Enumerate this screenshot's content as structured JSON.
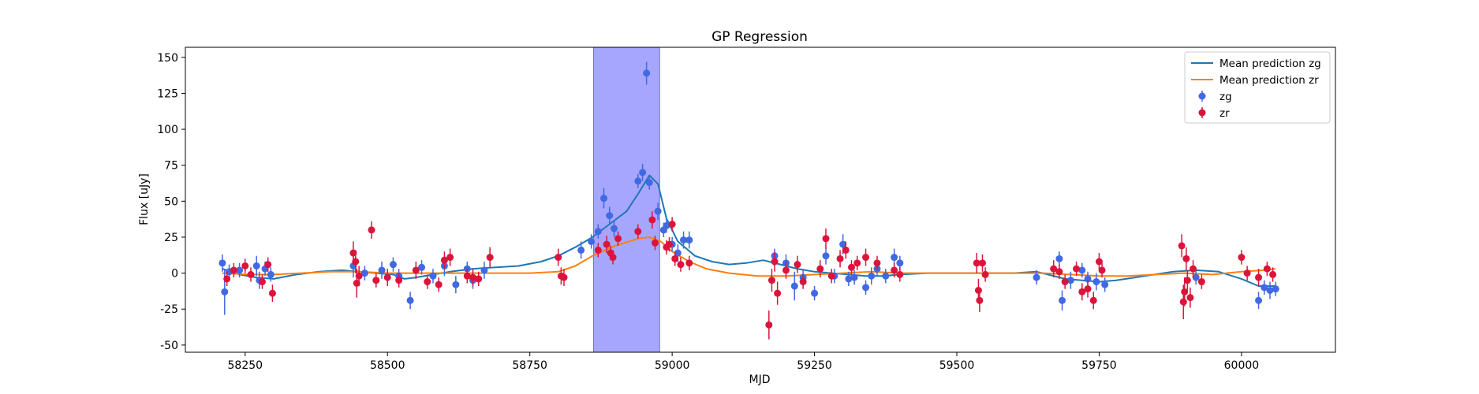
{
  "chart_data": {
    "type": "scatter",
    "title": "GP Regression",
    "xlabel": "MJD",
    "ylabel": "Flux [uJy]",
    "xlim": [
      58145,
      60165
    ],
    "ylim": [
      -55,
      157
    ],
    "x_ticks": [
      58250,
      58500,
      58750,
      59000,
      59250,
      59500,
      59750,
      60000
    ],
    "y_ticks": [
      -50,
      -25,
      0,
      25,
      50,
      75,
      100,
      125,
      150
    ],
    "legend_position": "top-right",
    "highlight_span": {
      "x0": 58862,
      "x1": 58978,
      "color": "#a6a6ff"
    },
    "lines": [
      {
        "name": "Mean prediction zg",
        "color": "#1f77b4",
        "x": [
          58210,
          58240,
          58270,
          58300,
          58340,
          58380,
          58420,
          58450,
          58480,
          58510,
          58530,
          58550,
          58580,
          58610,
          58650,
          58690,
          58730,
          58770,
          58800,
          58830,
          58860,
          58890,
          58920,
          58940,
          58960,
          58975,
          58990,
          59010,
          59040,
          59070,
          59100,
          59130,
          59160,
          59190,
          59220,
          59250,
          59280,
          59310,
          59340,
          59370,
          59400,
          59450,
          59500,
          59550,
          59600,
          59640,
          59660,
          59690,
          59720,
          59750,
          59780,
          59830,
          59880,
          59920,
          59960,
          60000,
          60030,
          60060
        ],
        "y": [
          3,
          -1,
          -3,
          -4,
          -1,
          1,
          2,
          1,
          0,
          -1,
          -4,
          -3,
          -1,
          1,
          3,
          4,
          5,
          8,
          12,
          18,
          25,
          34,
          43,
          55,
          68,
          62,
          38,
          22,
          12,
          8,
          6,
          7,
          9,
          6,
          3,
          1,
          0,
          -1,
          -2,
          -2,
          -1,
          0,
          0,
          0,
          0,
          1,
          -1,
          -4,
          -5,
          -6,
          -5,
          -2,
          1,
          2,
          1,
          -4,
          -9,
          -9
        ]
      },
      {
        "name": "Mean prediction zr",
        "color": "#ff7f0e",
        "x": [
          58210,
          58260,
          58300,
          58350,
          58400,
          58450,
          58500,
          58550,
          58600,
          58650,
          58700,
          58750,
          58800,
          58830,
          58860,
          58900,
          58940,
          58960,
          58980,
          59000,
          59030,
          59060,
          59100,
          59150,
          59200,
          59250,
          59300,
          59350,
          59400,
          59450,
          59500,
          59550,
          59600,
          59650,
          59700,
          59750,
          59800,
          59850,
          59900,
          59950,
          60000,
          60040,
          60060
        ],
        "y": [
          0,
          -1,
          -1,
          0,
          1,
          1,
          0,
          0,
          0,
          0,
          0,
          0,
          1,
          5,
          12,
          19,
          24,
          25,
          22,
          15,
          8,
          3,
          0,
          -2,
          -2,
          -1,
          0,
          1,
          0,
          0,
          0,
          0,
          0,
          0,
          -1,
          -2,
          -2,
          -1,
          0,
          -1,
          1,
          2,
          3
        ]
      }
    ],
    "series": [
      {
        "name": "zg",
        "color": "#4169e1",
        "points": [
          [
            58210,
            7,
            6
          ],
          [
            58214,
            -13,
            16
          ],
          [
            58222,
            1,
            5
          ],
          [
            58240,
            2,
            5
          ],
          [
            58270,
            5,
            7
          ],
          [
            58275,
            -5,
            6
          ],
          [
            58285,
            3,
            5
          ],
          [
            58295,
            -1,
            5
          ],
          [
            58440,
            5,
            8
          ],
          [
            58460,
            0,
            5
          ],
          [
            58490,
            2,
            6
          ],
          [
            58510,
            6,
            5
          ],
          [
            58520,
            -2,
            5
          ],
          [
            58540,
            -19,
            6
          ],
          [
            58560,
            4,
            5
          ],
          [
            58580,
            -2,
            5
          ],
          [
            58600,
            5,
            7
          ],
          [
            58620,
            -8,
            6
          ],
          [
            58640,
            3,
            5
          ],
          [
            58650,
            -5,
            6
          ],
          [
            58670,
            2,
            6
          ],
          [
            58840,
            16,
            6
          ],
          [
            58858,
            22,
            5
          ],
          [
            58870,
            29,
            5
          ],
          [
            58880,
            52,
            7
          ],
          [
            58890,
            40,
            6
          ],
          [
            58898,
            31,
            6
          ],
          [
            58940,
            64,
            5
          ],
          [
            58948,
            70,
            6
          ],
          [
            58955,
            139,
            8
          ],
          [
            58960,
            63,
            5
          ],
          [
            58975,
            43,
            6
          ],
          [
            58985,
            30,
            5
          ],
          [
            58990,
            33,
            5
          ],
          [
            59000,
            20,
            5
          ],
          [
            59010,
            14,
            6
          ],
          [
            59020,
            23,
            6
          ],
          [
            59030,
            23,
            6
          ],
          [
            59180,
            12,
            5
          ],
          [
            59200,
            7,
            6
          ],
          [
            59215,
            -9,
            10
          ],
          [
            59230,
            -3,
            6
          ],
          [
            59250,
            -14,
            5
          ],
          [
            59270,
            12,
            6
          ],
          [
            59285,
            -2,
            5
          ],
          [
            59300,
            20,
            7
          ],
          [
            59310,
            -4,
            5
          ],
          [
            59320,
            -3,
            5
          ],
          [
            59340,
            -10,
            5
          ],
          [
            59350,
            -2,
            6
          ],
          [
            59360,
            3,
            5
          ],
          [
            59375,
            -2,
            5
          ],
          [
            59390,
            11,
            6
          ],
          [
            59400,
            7,
            5
          ],
          [
            59640,
            -3,
            5
          ],
          [
            59680,
            10,
            5
          ],
          [
            59685,
            -19,
            7
          ],
          [
            59700,
            -5,
            6
          ],
          [
            59720,
            2,
            5
          ],
          [
            59730,
            -4,
            5
          ],
          [
            59745,
            -6,
            6
          ],
          [
            59760,
            -8,
            5
          ],
          [
            59920,
            -3,
            5
          ],
          [
            60030,
            -19,
            6
          ],
          [
            60040,
            -10,
            5
          ],
          [
            60050,
            -12,
            6
          ],
          [
            60060,
            -11,
            5
          ]
        ]
      },
      {
        "name": "zr",
        "color": "#dc143c",
        "points": [
          [
            58218,
            -4,
            5
          ],
          [
            58230,
            2,
            5
          ],
          [
            58250,
            5,
            5
          ],
          [
            58260,
            -1,
            5
          ],
          [
            58280,
            -6,
            5
          ],
          [
            58290,
            6,
            5
          ],
          [
            58298,
            -14,
            6
          ],
          [
            58440,
            14,
            8
          ],
          [
            58444,
            8,
            8
          ],
          [
            58446,
            -7,
            10
          ],
          [
            58450,
            -2,
            7
          ],
          [
            58472,
            30,
            6
          ],
          [
            58480,
            -5,
            5
          ],
          [
            58500,
            -3,
            6
          ],
          [
            58520,
            -5,
            5
          ],
          [
            58550,
            2,
            6
          ],
          [
            58570,
            -6,
            5
          ],
          [
            58590,
            -8,
            5
          ],
          [
            58600,
            9,
            6
          ],
          [
            58610,
            11,
            6
          ],
          [
            58640,
            -2,
            5
          ],
          [
            58650,
            -3,
            6
          ],
          [
            58660,
            -4,
            5
          ],
          [
            58680,
            11,
            7
          ],
          [
            58800,
            11,
            6
          ],
          [
            58805,
            -2,
            6
          ],
          [
            58810,
            -3,
            6
          ],
          [
            58870,
            16,
            5
          ],
          [
            58885,
            20,
            6
          ],
          [
            58892,
            14,
            5
          ],
          [
            58896,
            11,
            5
          ],
          [
            58905,
            24,
            5
          ],
          [
            58940,
            29,
            5
          ],
          [
            58965,
            37,
            6
          ],
          [
            58970,
            21,
            5
          ],
          [
            58990,
            18,
            5
          ],
          [
            58995,
            20,
            5
          ],
          [
            59000,
            34,
            5
          ],
          [
            59005,
            10,
            5
          ],
          [
            59015,
            6,
            5
          ],
          [
            59030,
            7,
            5
          ],
          [
            59170,
            -36,
            10
          ],
          [
            59175,
            -5,
            8
          ],
          [
            59180,
            8,
            7
          ],
          [
            59185,
            -14,
            8
          ],
          [
            59200,
            2,
            6
          ],
          [
            59220,
            6,
            6
          ],
          [
            59230,
            -6,
            5
          ],
          [
            59260,
            3,
            6
          ],
          [
            59270,
            24,
            7
          ],
          [
            59280,
            -2,
            5
          ],
          [
            59295,
            10,
            6
          ],
          [
            59305,
            16,
            6
          ],
          [
            59315,
            4,
            5
          ],
          [
            59325,
            7,
            5
          ],
          [
            59340,
            11,
            6
          ],
          [
            59360,
            7,
            5
          ],
          [
            59390,
            2,
            5
          ],
          [
            59400,
            -1,
            5
          ],
          [
            59535,
            7,
            7
          ],
          [
            59538,
            -12,
            8
          ],
          [
            59540,
            -19,
            8
          ],
          [
            59545,
            7,
            6
          ],
          [
            59550,
            -1,
            5
          ],
          [
            59670,
            3,
            6
          ],
          [
            59680,
            1,
            5
          ],
          [
            59690,
            -6,
            5
          ],
          [
            59710,
            3,
            5
          ],
          [
            59720,
            -13,
            6
          ],
          [
            59730,
            -11,
            6
          ],
          [
            59740,
            -19,
            6
          ],
          [
            59750,
            8,
            6
          ],
          [
            59755,
            2,
            5
          ],
          [
            59895,
            19,
            8
          ],
          [
            59898,
            -20,
            12
          ],
          [
            59900,
            -13,
            10
          ],
          [
            59903,
            10,
            8
          ],
          [
            59905,
            -5,
            7
          ],
          [
            59910,
            -17,
            7
          ],
          [
            59915,
            3,
            6
          ],
          [
            59930,
            -6,
            5
          ],
          [
            60000,
            11,
            5
          ],
          [
            60010,
            0,
            5
          ],
          [
            60030,
            -3,
            6
          ],
          [
            60045,
            3,
            5
          ],
          [
            60055,
            -1,
            5
          ]
        ]
      }
    ]
  }
}
